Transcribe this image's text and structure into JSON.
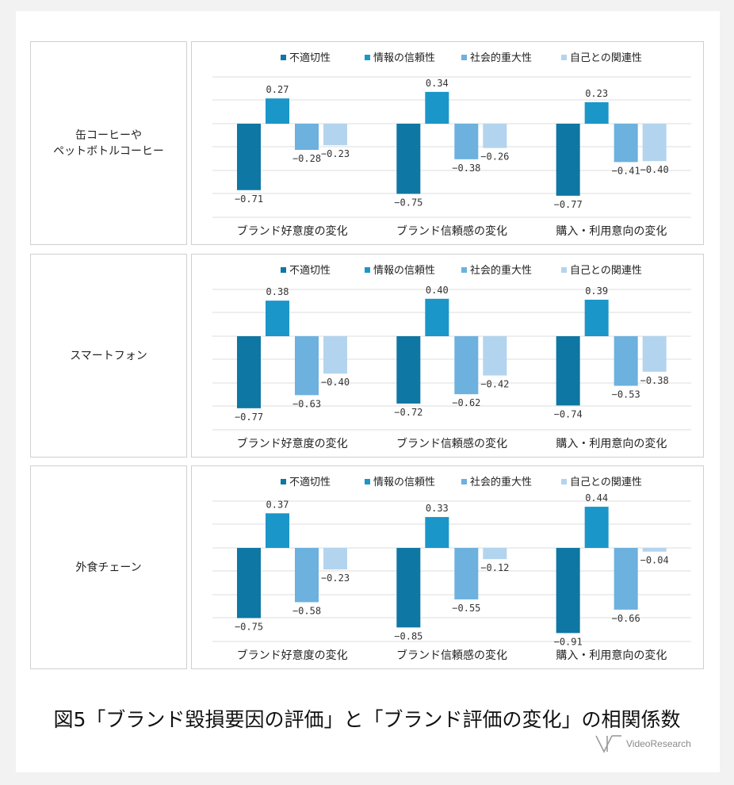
{
  "chart_data": [
    {
      "type": "bar",
      "row_label": "缶コーヒーや\nペットボトルコーヒー",
      "categories": [
        "ブランド好意度の変化",
        "ブランド信頼感の変化",
        "購入・利用意向の変化"
      ],
      "series": [
        {
          "name": "不適切性",
          "values": [
            -0.71,
            -0.75,
            -0.77
          ]
        },
        {
          "name": "情報の信頼性",
          "values": [
            0.27,
            0.34,
            0.23
          ]
        },
        {
          "name": "社会的重大性",
          "values": [
            -0.28,
            -0.38,
            -0.41
          ]
        },
        {
          "name": "自己との関連性",
          "values": [
            -0.23,
            -0.26,
            -0.4
          ]
        }
      ],
      "ylim": [
        -1.0,
        0.6
      ],
      "grid": true,
      "legend": "top"
    },
    {
      "type": "bar",
      "row_label": "スマートフォン",
      "categories": [
        "ブランド好意度の変化",
        "ブランド信頼感の変化",
        "購入・利用意向の変化"
      ],
      "series": [
        {
          "name": "不適切性",
          "values": [
            -0.77,
            -0.72,
            -0.74
          ]
        },
        {
          "name": "情報の信頼性",
          "values": [
            0.38,
            0.4,
            0.39
          ]
        },
        {
          "name": "社会的重大性",
          "values": [
            -0.63,
            -0.62,
            -0.53
          ]
        },
        {
          "name": "自己との関連性",
          "values": [
            -0.4,
            -0.42,
            -0.38
          ]
        }
      ],
      "ylim": [
        -1.0,
        0.6
      ],
      "grid": true,
      "legend": "top"
    },
    {
      "type": "bar",
      "row_label": "外食チェーン",
      "categories": [
        "ブランド好意度の変化",
        "ブランド信頼感の変化",
        "購入・利用意向の変化"
      ],
      "series": [
        {
          "name": "不適切性",
          "values": [
            -0.75,
            -0.85,
            -0.91
          ]
        },
        {
          "name": "情報の信頼性",
          "values": [
            0.37,
            0.33,
            0.44
          ]
        },
        {
          "name": "社会的重大性",
          "values": [
            -0.58,
            -0.55,
            -0.66
          ]
        },
        {
          "name": "自己との関連性",
          "values": [
            -0.23,
            -0.12,
            -0.04
          ]
        }
      ],
      "ylim": [
        -1.0,
        0.6
      ],
      "grid": true,
      "legend": "top"
    }
  ],
  "colors": [
    "#0f77a3",
    "#1a96c9",
    "#6db1de",
    "#b3d4ee"
  ],
  "caption": "図5「ブランド毀損要因の評価」と「ブランド評価の変化」の相関係数",
  "logo": {
    "text": "VideoResearch",
    "icon": "video-research-logo-icon"
  }
}
